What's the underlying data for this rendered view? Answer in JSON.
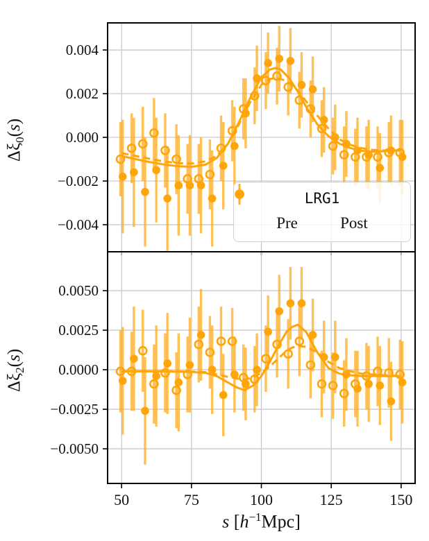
{
  "colors": {
    "accent": "#ffa50a",
    "errorbar": "rgba(255,168,20,0.72)",
    "grid": "#c9c9c9",
    "spine": "#000000",
    "text": "#111111"
  },
  "legend": {
    "title": "LRG1",
    "items": [
      {
        "label": "Pre",
        "marker": "open-circle"
      },
      {
        "label": "Post",
        "marker": "filled-circle"
      }
    ]
  },
  "axes": {
    "xlim": [
      45,
      155
    ],
    "xticks": [
      50,
      75,
      100,
      125,
      150
    ],
    "xtick_labels": [
      "50",
      "75",
      "100",
      "125",
      "150"
    ],
    "xlabel_parts": {
      "s": "s",
      "lbrack": " [",
      "h": "h",
      "exp": "−1",
      "unit": "Mpc]"
    }
  },
  "chart_data": [
    {
      "id": "xi0",
      "type": "scatter",
      "ylabel_parts": {
        "prefix": "Δξ",
        "sub": "0",
        "open": "(",
        "var": "s",
        "close": ")"
      },
      "ylim": [
        -0.00524,
        0.00524
      ],
      "yticks": [
        {
          "v": 0.004,
          "label": "0.004"
        },
        {
          "v": 0.002,
          "label": "0.002"
        },
        {
          "v": 0.0,
          "label": "0.000"
        },
        {
          "v": -0.002,
          "label": "−0.002"
        },
        {
          "v": -0.004,
          "label": "−0.004"
        }
      ],
      "x": [
        50,
        54,
        58,
        62,
        66,
        70,
        74,
        78,
        82,
        86,
        90,
        94,
        98,
        102,
        106,
        110,
        114,
        118,
        122,
        126,
        130,
        134,
        138,
        142,
        146,
        150
      ],
      "series": [
        {
          "name": "Pre",
          "kind": "points",
          "marker": "open-circle",
          "dodge": -0.4,
          "y": [
            -0.001,
            -0.0005,
            -0.0003,
            0.0002,
            -0.0006,
            -0.001,
            -0.0019,
            -0.0019,
            -0.0017,
            -0.0005,
            0.0003,
            0.0013,
            0.0019,
            0.0026,
            0.0028,
            0.0023,
            0.0017,
            0.0013,
            0.0004,
            -0.0004,
            -0.0008,
            -0.0009,
            -0.0009,
            -0.0009,
            -0.0007,
            -0.0007
          ],
          "yerr": [
            0.0017,
            0.0016,
            0.0017,
            0.0016,
            0.0017,
            0.0016,
            0.0016,
            0.0016,
            0.0016,
            0.0015,
            0.0014,
            0.0014,
            0.0013,
            0.0013,
            0.0013,
            0.0013,
            0.0013,
            0.0013,
            0.0013,
            0.0013,
            0.0013,
            0.0013,
            0.0014,
            0.0014,
            0.0014,
            0.0015
          ]
        },
        {
          "name": "Post",
          "kind": "points",
          "marker": "filled-circle",
          "dodge": 0.4,
          "y": [
            -0.0018,
            -0.0016,
            -0.0025,
            -0.0015,
            -0.0028,
            -0.0022,
            -0.0022,
            -0.0022,
            -0.0028,
            -0.0013,
            -0.0004,
            0.0011,
            0.0027,
            0.0034,
            0.0036,
            0.0035,
            0.0024,
            0.0022,
            0.0008,
            0.0,
            -0.0003,
            -0.0006,
            -0.0008,
            -0.0014,
            -0.0006,
            -0.0009
          ],
          "yerr": [
            0.0026,
            0.0025,
            0.0025,
            0.0024,
            0.0024,
            0.0023,
            0.0023,
            0.0022,
            0.0022,
            0.002,
            0.0018,
            0.0016,
            0.0015,
            0.0014,
            0.0015,
            0.0015,
            0.0015,
            0.0015,
            0.0015,
            0.0015,
            0.0015,
            0.0015,
            0.0016,
            0.0016,
            0.0016,
            0.0017
          ]
        },
        {
          "name": "Pre model",
          "kind": "line",
          "style": "dashed",
          "x": [
            50,
            55,
            60,
            65,
            70,
            75,
            80,
            84,
            88,
            92,
            96,
            100,
            103,
            105,
            107,
            110,
            113,
            116,
            120,
            124,
            128,
            132,
            136,
            140,
            145,
            150
          ],
          "y": [
            -0.00072,
            -0.00085,
            -0.00098,
            -0.0011,
            -0.00118,
            -0.0012,
            -0.0011,
            -0.00085,
            -0.0003,
            0.0006,
            0.0016,
            0.0024,
            0.00267,
            0.00272,
            0.00267,
            0.0025,
            0.00215,
            0.00165,
            0.001,
            0.0004,
            -0.0001,
            -0.00035,
            -0.0005,
            -0.00058,
            -0.0006,
            -0.0006
          ]
        },
        {
          "name": "Post model",
          "kind": "line",
          "style": "solid",
          "x": [
            50,
            55,
            60,
            65,
            70,
            75,
            80,
            84,
            88,
            92,
            96,
            100,
            103,
            105,
            107,
            110,
            113,
            116,
            120,
            124,
            128,
            132,
            136,
            140,
            145,
            150
          ],
          "y": [
            -0.00085,
            -0.001,
            -0.00113,
            -0.00124,
            -0.00132,
            -0.00135,
            -0.00125,
            -0.00095,
            -0.0003,
            0.0007,
            0.0018,
            0.00275,
            0.0031,
            0.00318,
            0.0031,
            0.0027,
            0.0021,
            0.0014,
            0.0006,
            5e-05,
            -0.0003,
            -0.0005,
            -0.00062,
            -0.00066,
            -0.00063,
            -0.00058
          ]
        }
      ]
    },
    {
      "id": "xi2",
      "type": "scatter",
      "ylabel_parts": {
        "prefix": "Δξ",
        "sub": "2",
        "open": "(",
        "var": "s",
        "close": ")"
      },
      "ylim": [
        -0.00719,
        0.00746
      ],
      "yticks": [
        {
          "v": 0.005,
          "label": "0.0050"
        },
        {
          "v": 0.0025,
          "label": "0.0025"
        },
        {
          "v": 0.0,
          "label": "0.0000"
        },
        {
          "v": -0.0025,
          "label": "−0.0025"
        },
        {
          "v": -0.005,
          "label": "−0.0050"
        }
      ],
      "x": [
        50,
        54,
        58,
        62,
        66,
        70,
        74,
        78,
        82,
        86,
        90,
        94,
        98,
        102,
        106,
        110,
        114,
        118,
        122,
        126,
        130,
        134,
        138,
        142,
        146,
        150
      ],
      "series": [
        {
          "name": "Pre",
          "kind": "points",
          "marker": "open-circle",
          "dodge": -0.4,
          "y": [
            -0.0001,
            -0.0001,
            0.0012,
            -0.0009,
            -0.0002,
            -0.0013,
            -0.0003,
            0.0016,
            0.0011,
            0.0018,
            0.0018,
            -0.0005,
            -0.0006,
            0.0007,
            0.0016,
            0.001,
            0.0018,
            0.0003,
            -0.0009,
            -0.001,
            -0.0015,
            -0.0009,
            -0.0004,
            -0.0001,
            -0.0002,
            -0.0003
          ],
          "yerr": [
            0.0026,
            0.0025,
            0.0026,
            0.0025,
            0.0025,
            0.0024,
            0.0024,
            0.0024,
            0.0023,
            0.0022,
            0.0021,
            0.0021,
            0.0021,
            0.0021,
            0.0021,
            0.0022,
            0.0022,
            0.0021,
            0.0021,
            0.0021,
            0.0021,
            0.0021,
            0.0021,
            0.0022,
            0.0022,
            0.0022
          ]
        },
        {
          "name": "Post",
          "kind": "points",
          "marker": "filled-circle",
          "dodge": 0.4,
          "y": [
            -0.0007,
            0.0007,
            -0.0026,
            -0.0004,
            0.0004,
            -0.0008,
            0.0003,
            0.0022,
            0.0,
            -0.0016,
            -0.0003,
            -0.0009,
            0.0,
            0.0024,
            0.0037,
            0.0042,
            0.0042,
            0.0022,
            0.0008,
            0.0008,
            -0.0003,
            -0.0012,
            -0.0009,
            -0.001,
            -0.002,
            -0.0008
          ],
          "yerr": [
            0.0034,
            0.0033,
            0.0034,
            0.0032,
            0.0032,
            0.0031,
            0.003,
            0.0029,
            0.0028,
            0.0026,
            0.0024,
            0.0023,
            0.0023,
            0.0023,
            0.0023,
            0.0023,
            0.0023,
            0.0023,
            0.0023,
            0.0023,
            0.0023,
            0.0024,
            0.0024,
            0.0025,
            0.0025,
            0.0026
          ]
        },
        {
          "name": "Pre model",
          "kind": "line",
          "style": "dashed",
          "x": [
            50,
            55,
            60,
            65,
            70,
            75,
            80,
            84,
            88,
            91,
            94,
            97,
            100,
            103,
            106,
            109,
            111,
            113,
            116,
            120,
            124,
            128,
            132,
            136,
            140,
            145,
            150
          ],
          "y": [
            -0.0001,
            -0.0001,
            -0.0001,
            -0.0001,
            -0.0001,
            -0.00012,
            -0.00015,
            -0.0003,
            -0.00045,
            -0.00055,
            -0.00062,
            -0.0005,
            -0.0002,
            0.0002,
            0.0007,
            0.0012,
            0.0014,
            0.0015,
            0.00145,
            0.0011,
            0.0005,
            0.0001,
            -0.0001,
            -0.00025,
            -0.0003,
            -0.00035,
            -0.0004
          ]
        },
        {
          "name": "Post model",
          "kind": "line",
          "style": "solid",
          "x": [
            50,
            55,
            60,
            65,
            70,
            75,
            80,
            84,
            88,
            91,
            94,
            97,
            100,
            103,
            106,
            109,
            111,
            113,
            116,
            120,
            124,
            128,
            132,
            136,
            140,
            145,
            150
          ],
          "y": [
            -0.0001,
            -0.0001,
            -0.0001,
            -0.00011,
            -0.00012,
            -0.00014,
            -0.0002,
            -0.0004,
            -0.0008,
            -0.0011,
            -0.0013,
            -0.001,
            -0.0004,
            0.0005,
            0.0015,
            0.0024,
            0.0027,
            0.00285,
            0.0024,
            0.0011,
            0.0001,
            -0.00025,
            -0.00035,
            -0.0004,
            -0.0004,
            -0.0004,
            -0.0004
          ]
        }
      ]
    }
  ]
}
